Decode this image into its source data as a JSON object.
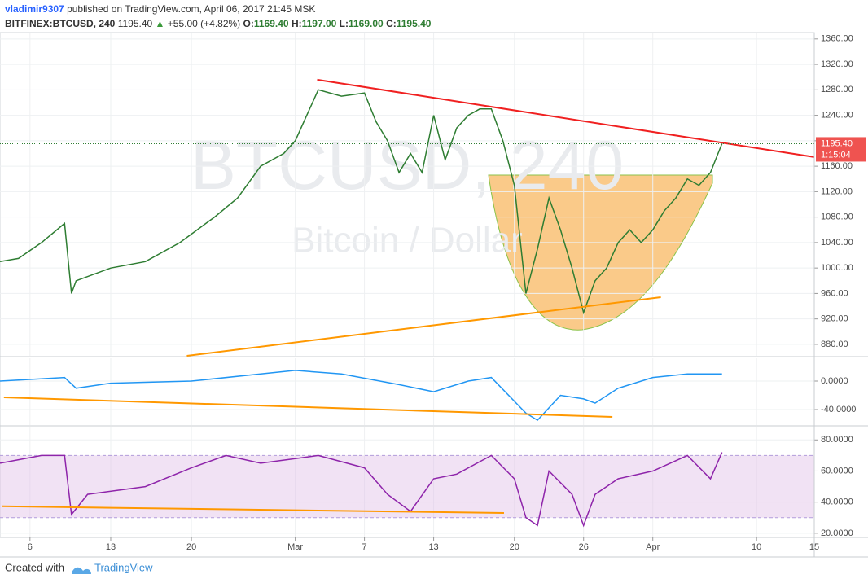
{
  "header": {
    "publisher": "vladimir9307",
    "published": "published on TradingView.com, April 06, 2017 21:45 MSK",
    "symbol": "BITFINEX:BTCUSD, 240",
    "last": "1195.40",
    "arrow": "▲",
    "change": "+55.00 (+4.82%)",
    "o_label": "O:",
    "o": "1169.40",
    "h_label": "H:",
    "h": "1197.00",
    "l_label": "L:",
    "l": "1169.00",
    "c_label": "C:",
    "c": "1195.40"
  },
  "footer": {
    "created": "Created with",
    "brand": "TradingView"
  },
  "chart_data": [
    {
      "type": "line",
      "watermark": "BTCUSD, 240",
      "watermark_sub": "Bitcoin / Dollar",
      "x": [
        3.4,
        5,
        7,
        9,
        9.6,
        10,
        13,
        16,
        19,
        22,
        24,
        26,
        28,
        29,
        31,
        33,
        35,
        36,
        37,
        38,
        39,
        40,
        41,
        42,
        43,
        44,
        45,
        46,
        47,
        48,
        49,
        50,
        51,
        52,
        53,
        54,
        55,
        56,
        57,
        58,
        59,
        60,
        61,
        62,
        63,
        64,
        65,
        66
      ],
      "series": [
        {
          "color": "#2e7d32",
          "values": [
            1010,
            1015,
            1040,
            1070,
            960,
            980,
            1000,
            1010,
            1040,
            1080,
            1110,
            1160,
            1180,
            1200,
            1280,
            1270,
            1275,
            1230,
            1200,
            1150,
            1180,
            1150,
            1240,
            1170,
            1220,
            1240,
            1250,
            1250,
            1200,
            1130,
            960,
            1030,
            1110,
            1060,
            1000,
            930,
            980,
            1000,
            1040,
            1060,
            1040,
            1060,
            1090,
            1110,
            1140,
            1130,
            1150,
            1195.4
          ]
        }
      ],
      "trendlines": [
        {
          "color": "#f02020",
          "x": [
            30.9,
            74
          ],
          "values": [
            1296,
            1174.4
          ]
        },
        {
          "color": "#ff9800",
          "x": [
            19.6,
            60.7
          ],
          "values": [
            862,
            954.2
          ]
        }
      ],
      "last_price": {
        "value": 1195.4,
        "label": "1195.40"
      },
      "countdown": "1:15:04",
      "xlim": [
        3.4,
        74
      ],
      "ylim": [
        862,
        1370
      ],
      "yticks": [
        {
          "value": 880,
          "label": "880.00"
        },
        {
          "value": 920,
          "label": "920.00"
        },
        {
          "value": 960,
          "label": "960.00"
        },
        {
          "value": 1000,
          "label": "1000.00"
        },
        {
          "value": 1040,
          "label": "1040.00"
        },
        {
          "value": 1080,
          "label": "1080.00"
        },
        {
          "value": 1120,
          "label": "1120.00"
        },
        {
          "value": 1160,
          "label": "1160.00"
        },
        {
          "value": 1200,
          "label": "1200.00"
        },
        {
          "value": 1240,
          "label": "1240.00"
        },
        {
          "value": 1280,
          "label": "1280.00"
        },
        {
          "value": 1320,
          "label": "1320.00"
        },
        {
          "value": 1360,
          "label": "1360.00"
        }
      ]
    },
    {
      "type": "line",
      "x": [
        3.4,
        9,
        10,
        13,
        20,
        26,
        29,
        33,
        38,
        41,
        44,
        46,
        49,
        50,
        52,
        54,
        55,
        57,
        60,
        63,
        66
      ],
      "series": [
        {
          "color": "#2196f3",
          "values": [
            0,
            5,
            -10,
            -3,
            0,
            10,
            15,
            10,
            -5,
            -15,
            0,
            5,
            -45,
            -55,
            -20,
            -25,
            -31,
            -10,
            5,
            10,
            10
          ]
        }
      ],
      "trendlines": [
        {
          "color": "#ff9800",
          "x": [
            3.74,
            56.5
          ],
          "values": [
            -22.9,
            -50.3
          ]
        }
      ],
      "xlim": [
        3.4,
        74
      ],
      "ylim": [
        -61.7,
        32
      ],
      "yticks": [
        {
          "value": -40,
          "label": "-40.0000"
        },
        {
          "value": 0,
          "label": "0.0000"
        }
      ]
    },
    {
      "type": "line",
      "band": [
        30,
        70
      ],
      "x": [
        3.4,
        7,
        9,
        9.6,
        11,
        16,
        20,
        23,
        26,
        29,
        31,
        35,
        37,
        39,
        41,
        43,
        46,
        48,
        49,
        50,
        51,
        53,
        54,
        55,
        57,
        60,
        63,
        65,
        66
      ],
      "series": [
        {
          "color": "#8e24aa",
          "values": [
            65,
            70,
            70,
            32,
            45,
            50,
            62,
            70,
            65,
            68,
            70,
            62,
            45,
            34,
            55,
            58,
            70,
            55,
            30,
            25,
            60,
            45,
            25,
            45,
            55,
            60,
            70,
            55,
            72
          ]
        }
      ],
      "trendlines": [
        {
          "color": "#ff9800",
          "x": [
            3.6,
            47.1
          ],
          "values": [
            37.3,
            33
          ]
        }
      ],
      "xlim": [
        3.4,
        74
      ],
      "ylim": [
        17.3,
        88
      ],
      "yticks": [
        {
          "value": 20,
          "label": "20.0000"
        },
        {
          "value": 40,
          "label": "40.0000"
        },
        {
          "value": 60,
          "label": "60.0000"
        },
        {
          "value": 80,
          "label": "80.0000"
        }
      ],
      "xticks": [
        {
          "value": 6,
          "label": "6"
        },
        {
          "value": 13,
          "label": "13"
        },
        {
          "value": 20,
          "label": "20"
        },
        {
          "value": 29,
          "label": "Mar"
        },
        {
          "value": 35,
          "label": "7"
        },
        {
          "value": 41,
          "label": "13"
        },
        {
          "value": 48,
          "label": "20"
        },
        {
          "value": 54,
          "label": "26"
        },
        {
          "value": 60,
          "label": "Apr"
        },
        {
          "value": 69,
          "label": "10"
        },
        {
          "value": 74,
          "label": "15"
        }
      ]
    }
  ]
}
